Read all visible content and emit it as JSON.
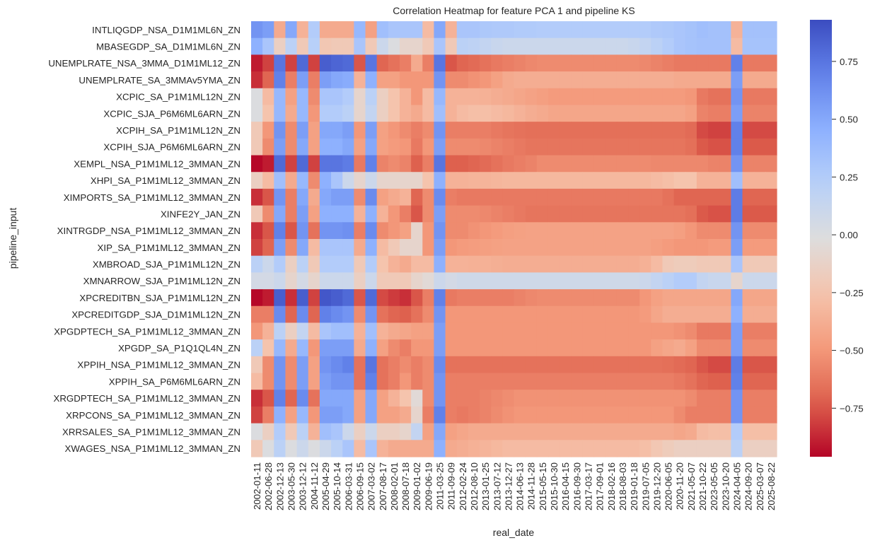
{
  "chart_data": {
    "type": "heatmap",
    "title": "Correlation Heatmap for feature PCA 1 and pipeline KS",
    "xlabel": "real_date",
    "ylabel": "pipeline_input",
    "colormap": "coolwarm",
    "vmin": -0.96,
    "vmax": 0.93,
    "colorbar_ticks": [
      0.75,
      0.5,
      0.25,
      0.0,
      -0.25,
      -0.5,
      -0.75
    ],
    "colorbar_tick_labels": [
      "0.75",
      "0.50",
      "0.25",
      "0.00",
      "−0.25",
      "−0.50",
      "−0.75"
    ],
    "x": [
      "2002-01-11",
      "2002-06-28",
      "2002-12-13",
      "2003-05-30",
      "2003-12-12",
      "2004-11-12",
      "2005-04-29",
      "2005-10-14",
      "2006-03-31",
      "2006-09-15",
      "2007-03-02",
      "2007-08-17",
      "2008-02-01",
      "2008-07-18",
      "2009-01-02",
      "2009-06-19",
      "2011-03-25",
      "2011-09-09",
      "2012-02-24",
      "2012-08-10",
      "2013-01-25",
      "2013-07-12",
      "2013-12-27",
      "2014-06-13",
      "2014-11-28",
      "2015-05-15",
      "2015-10-30",
      "2016-04-15",
      "2016-09-30",
      "2017-03-17",
      "2017-09-01",
      "2018-02-16",
      "2018-08-03",
      "2019-01-18",
      "2019-07-05",
      "2019-12-20",
      "2020-06-05",
      "2020-11-20",
      "2021-05-07",
      "2021-10-22",
      "2023-05-05",
      "2023-10-20",
      "2024-04-05",
      "2024-09-20",
      "2025-03-07",
      "2025-08-22"
    ],
    "y": [
      "INTLIQGDP_NSA_D1M1ML6N_ZN",
      "MBASEGDP_SA_D1M1ML6N_ZN",
      "UNEMPLRATE_NSA_3MMA_D1M1ML12_ZN",
      "UNEMPLRATE_SA_3MMAv5YMA_ZN",
      "XCPIC_SA_P1M1ML12N_ZN",
      "XCPIC_SJA_P6M6ML6ARN_ZN",
      "XCPIH_SA_P1M1ML12N_ZN",
      "XCPIH_SJA_P6M6ML6ARN_ZN",
      "XEMPL_NSA_P1M1ML12_3MMAN_ZN",
      "XHPI_SA_P1M1ML12_3MMAN_ZN",
      "XIMPORTS_SA_P1M1ML12_3MMAN_ZN",
      "XINFE2Y_JAN_ZN",
      "XINTRGDP_NSA_P1M1ML12_3MMAN_ZN",
      "XIP_SA_P1M1ML12_3MMAN_ZN",
      "XMBROAD_SJA_P1M1ML12N_ZN",
      "XMNARROW_SJA_P1M1ML12N_ZN",
      "XPCREDITBN_SJA_P1M1ML12N_ZN",
      "XPCREDITGDP_SJA_D1M1ML12N_ZN",
      "XPGDPTECH_SA_P1M1ML12_3MMAN_ZN",
      "XPGDP_SA_P1Q1QL4N_ZN",
      "XPPIH_NSA_P1M1ML12_3MMAN_ZN",
      "XPPIH_SA_P6M6ML6ARN_ZN",
      "XRGDPTECH_SA_P1M1ML12_3MMAN_ZN",
      "XRPCONS_SA_P1M1ML12_3MMAN_ZN",
      "XRRSALES_SA_P1M1ML12_3MMAN_ZN",
      "XWAGES_NSA_P1M1ML12_3MMAN_ZN"
    ],
    "values": [
      [
        0.6,
        0.55,
        -0.4,
        0.5,
        -0.35,
        0.25,
        -0.4,
        -0.4,
        -0.4,
        0.4,
        -0.45,
        0.35,
        0.3,
        0.3,
        0.3,
        -0.3,
        0.5,
        -0.35,
        0.3,
        0.3,
        0.28,
        0.27,
        0.27,
        0.26,
        0.26,
        0.25,
        0.25,
        0.25,
        0.25,
        0.25,
        0.25,
        0.25,
        0.25,
        0.25,
        0.25,
        0.27,
        0.28,
        0.3,
        0.32,
        0.35,
        0.33,
        0.33,
        -0.35,
        0.33,
        0.33,
        0.33
      ],
      [
        0.45,
        0.3,
        -0.15,
        0.2,
        -0.2,
        0.22,
        -0.22,
        -0.2,
        -0.2,
        0.3,
        -0.2,
        0.1,
        0.0,
        -0.1,
        -0.1,
        -0.2,
        0.3,
        -0.2,
        0.2,
        0.18,
        0.15,
        0.12,
        0.1,
        0.1,
        0.1,
        0.1,
        0.1,
        0.1,
        0.1,
        0.1,
        0.1,
        0.1,
        0.1,
        0.12,
        0.15,
        0.2,
        0.25,
        0.3,
        0.32,
        0.33,
        0.33,
        0.33,
        -0.3,
        0.32,
        0.32,
        0.32
      ],
      [
        -0.9,
        -0.8,
        0.75,
        -0.8,
        0.8,
        -0.8,
        0.85,
        0.82,
        0.8,
        -0.75,
        0.75,
        -0.7,
        -0.65,
        -0.6,
        -0.4,
        -0.6,
        0.75,
        -0.75,
        -0.7,
        -0.68,
        -0.65,
        -0.62,
        -0.6,
        -0.58,
        -0.56,
        -0.55,
        -0.55,
        -0.55,
        -0.55,
        -0.55,
        -0.55,
        -0.55,
        -0.55,
        -0.55,
        -0.56,
        -0.58,
        -0.6,
        -0.62,
        -0.62,
        -0.62,
        -0.62,
        -0.62,
        0.7,
        -0.62,
        -0.62,
        -0.62
      ],
      [
        -0.85,
        -0.7,
        0.7,
        -0.6,
        0.55,
        -0.6,
        0.55,
        0.5,
        0.48,
        -0.35,
        0.45,
        -0.45,
        -0.45,
        -0.5,
        -0.5,
        -0.5,
        0.6,
        -0.55,
        -0.55,
        -0.52,
        -0.5,
        -0.45,
        -0.4,
        -0.38,
        -0.38,
        -0.38,
        -0.38,
        -0.38,
        -0.38,
        -0.38,
        -0.38,
        -0.38,
        -0.38,
        -0.38,
        -0.38,
        -0.38,
        -0.38,
        -0.4,
        -0.4,
        -0.4,
        -0.4,
        -0.4,
        0.55,
        -0.4,
        -0.4,
        -0.4
      ],
      [
        0.0,
        -0.3,
        0.4,
        -0.45,
        0.4,
        -0.55,
        0.3,
        0.3,
        0.25,
        -0.1,
        0.2,
        -0.15,
        -0.25,
        -0.35,
        -0.5,
        -0.3,
        0.4,
        -0.35,
        -0.35,
        -0.35,
        -0.36,
        -0.38,
        -0.4,
        -0.42,
        -0.44,
        -0.46,
        -0.48,
        -0.48,
        -0.48,
        -0.48,
        -0.48,
        -0.48,
        -0.48,
        -0.48,
        -0.48,
        -0.48,
        -0.48,
        -0.48,
        -0.5,
        -0.62,
        -0.65,
        -0.65,
        0.6,
        -0.62,
        -0.62,
        -0.62
      ],
      [
        0.0,
        -0.25,
        0.4,
        -0.4,
        0.4,
        -0.5,
        0.25,
        0.25,
        0.2,
        -0.1,
        0.15,
        -0.15,
        -0.25,
        -0.35,
        -0.4,
        -0.3,
        0.35,
        -0.35,
        -0.3,
        -0.28,
        -0.28,
        -0.3,
        -0.32,
        -0.35,
        -0.38,
        -0.4,
        -0.42,
        -0.42,
        -0.42,
        -0.42,
        -0.42,
        -0.42,
        -0.42,
        -0.42,
        -0.42,
        -0.42,
        -0.42,
        -0.42,
        -0.45,
        -0.58,
        -0.6,
        -0.6,
        0.55,
        -0.58,
        -0.58,
        -0.58
      ],
      [
        -0.2,
        -0.5,
        0.6,
        -0.55,
        0.55,
        -0.45,
        0.5,
        0.5,
        0.55,
        -0.5,
        0.55,
        -0.45,
        -0.5,
        -0.55,
        -0.6,
        -0.55,
        0.6,
        -0.6,
        -0.6,
        -0.6,
        -0.6,
        -0.62,
        -0.64,
        -0.65,
        -0.66,
        -0.66,
        -0.66,
        -0.66,
        -0.66,
        -0.66,
        -0.66,
        -0.66,
        -0.66,
        -0.66,
        -0.66,
        -0.66,
        -0.66,
        -0.66,
        -0.68,
        -0.78,
        -0.8,
        -0.8,
        0.7,
        -0.78,
        -0.78,
        -0.78
      ],
      [
        -0.2,
        -0.55,
        0.55,
        -0.55,
        0.5,
        -0.45,
        0.45,
        0.45,
        0.5,
        -0.45,
        0.5,
        -0.45,
        -0.48,
        -0.5,
        -0.62,
        -0.5,
        0.55,
        -0.55,
        -0.55,
        -0.55,
        -0.56,
        -0.58,
        -0.6,
        -0.62,
        -0.64,
        -0.64,
        -0.64,
        -0.64,
        -0.64,
        -0.64,
        -0.64,
        -0.64,
        -0.64,
        -0.64,
        -0.64,
        -0.64,
        -0.64,
        -0.64,
        -0.66,
        -0.74,
        -0.76,
        -0.76,
        0.7,
        -0.74,
        -0.74,
        -0.74
      ],
      [
        -0.95,
        -0.9,
        0.8,
        -0.8,
        0.8,
        -0.8,
        0.75,
        0.75,
        0.72,
        -0.62,
        0.7,
        -0.58,
        -0.55,
        -0.58,
        -0.72,
        -0.6,
        0.75,
        -0.72,
        -0.72,
        -0.7,
        -0.68,
        -0.65,
        -0.62,
        -0.6,
        -0.58,
        -0.55,
        -0.55,
        -0.55,
        -0.55,
        -0.55,
        -0.55,
        -0.55,
        -0.55,
        -0.55,
        -0.55,
        -0.56,
        -0.56,
        -0.56,
        -0.56,
        -0.56,
        -0.58,
        -0.58,
        0.6,
        -0.58,
        -0.58,
        -0.58
      ],
      [
        -0.15,
        -0.3,
        0.35,
        -0.4,
        0.4,
        -0.55,
        0.45,
        0.3,
        0.1,
        -0.1,
        0.1,
        -0.1,
        -0.1,
        -0.1,
        -0.1,
        -0.25,
        0.45,
        -0.35,
        -0.35,
        -0.34,
        -0.34,
        -0.33,
        -0.32,
        -0.32,
        -0.32,
        -0.32,
        -0.32,
        -0.32,
        -0.32,
        -0.32,
        -0.32,
        -0.32,
        -0.32,
        -0.32,
        -0.32,
        -0.3,
        -0.28,
        -0.25,
        -0.25,
        -0.35,
        -0.35,
        -0.35,
        0.35,
        -0.35,
        -0.35,
        -0.35
      ],
      [
        -0.85,
        -0.75,
        0.6,
        -0.6,
        0.5,
        -0.4,
        0.5,
        0.55,
        0.55,
        -0.55,
        0.65,
        -0.45,
        -0.4,
        -0.35,
        -0.7,
        -0.55,
        0.65,
        -0.6,
        -0.62,
        -0.62,
        -0.62,
        -0.62,
        -0.62,
        -0.62,
        -0.62,
        -0.62,
        -0.62,
        -0.62,
        -0.62,
        -0.62,
        -0.62,
        -0.62,
        -0.62,
        -0.62,
        -0.62,
        -0.62,
        -0.65,
        -0.7,
        -0.7,
        -0.7,
        -0.7,
        -0.7,
        0.72,
        -0.7,
        -0.7,
        -0.7
      ],
      [
        -0.2,
        -0.55,
        0.5,
        -0.6,
        0.55,
        -0.45,
        0.45,
        0.45,
        0.45,
        -0.35,
        0.45,
        -0.35,
        -0.5,
        -0.6,
        -0.75,
        -0.55,
        0.55,
        -0.55,
        -0.55,
        -0.55,
        -0.56,
        -0.58,
        -0.6,
        -0.62,
        -0.64,
        -0.64,
        -0.64,
        -0.64,
        -0.64,
        -0.64,
        -0.64,
        -0.64,
        -0.64,
        -0.64,
        -0.64,
        -0.64,
        -0.64,
        -0.64,
        -0.66,
        -0.74,
        -0.76,
        -0.76,
        0.72,
        -0.74,
        -0.74,
        -0.74
      ],
      [
        -0.85,
        -0.75,
        0.7,
        -0.75,
        0.6,
        -0.65,
        0.6,
        0.6,
        0.62,
        -0.6,
        0.65,
        -0.55,
        -0.5,
        -0.45,
        -0.1,
        -0.5,
        0.6,
        -0.55,
        -0.55,
        -0.52,
        -0.5,
        -0.48,
        -0.46,
        -0.45,
        -0.44,
        -0.44,
        -0.44,
        -0.44,
        -0.44,
        -0.44,
        -0.44,
        -0.44,
        -0.44,
        -0.44,
        -0.44,
        -0.44,
        -0.44,
        -0.46,
        -0.5,
        -0.55,
        -0.55,
        -0.55,
        0.6,
        -0.55,
        -0.55,
        -0.55
      ],
      [
        -0.8,
        -0.7,
        0.55,
        -0.55,
        0.5,
        -0.3,
        0.3,
        0.3,
        0.3,
        -0.4,
        0.45,
        -0.3,
        -0.2,
        -0.1,
        -0.1,
        -0.5,
        0.55,
        -0.5,
        -0.48,
        -0.47,
        -0.46,
        -0.45,
        -0.44,
        -0.44,
        -0.44,
        -0.44,
        -0.44,
        -0.44,
        -0.44,
        -0.44,
        -0.44,
        -0.44,
        -0.44,
        -0.44,
        -0.44,
        -0.46,
        -0.48,
        -0.5,
        -0.5,
        -0.5,
        -0.48,
        -0.48,
        0.55,
        -0.48,
        -0.48,
        -0.48
      ],
      [
        0.2,
        0.1,
        0.25,
        -0.15,
        0.2,
        -0.2,
        0.25,
        0.25,
        0.25,
        -0.2,
        0.25,
        -0.25,
        -0.35,
        -0.4,
        -0.3,
        -0.3,
        0.45,
        -0.35,
        -0.35,
        -0.36,
        -0.36,
        -0.37,
        -0.38,
        -0.38,
        -0.38,
        -0.38,
        -0.38,
        -0.38,
        -0.38,
        -0.38,
        -0.38,
        -0.38,
        -0.38,
        -0.38,
        -0.36,
        -0.3,
        -0.2,
        -0.18,
        -0.18,
        -0.2,
        -0.2,
        -0.2,
        0.3,
        -0.2,
        -0.2,
        -0.2
      ],
      [
        0.05,
        0.05,
        0.1,
        -0.1,
        0.05,
        -0.1,
        0.1,
        0.1,
        0.1,
        -0.15,
        0.1,
        -0.2,
        -0.2,
        -0.2,
        -0.1,
        -0.05,
        0.1,
        0.05,
        0.08,
        0.08,
        0.08,
        0.08,
        0.08,
        0.08,
        0.08,
        0.08,
        0.08,
        0.08,
        0.08,
        0.08,
        0.08,
        0.08,
        0.08,
        0.08,
        0.1,
        0.15,
        0.2,
        0.25,
        0.25,
        0.15,
        0.12,
        0.12,
        -0.1,
        0.1,
        0.1,
        0.1
      ],
      [
        -0.95,
        -0.9,
        0.85,
        -0.85,
        0.85,
        -0.8,
        0.88,
        0.85,
        0.8,
        -0.75,
        0.8,
        -0.78,
        -0.82,
        -0.85,
        -0.75,
        -0.6,
        0.7,
        -0.62,
        -0.6,
        -0.6,
        -0.6,
        -0.6,
        -0.6,
        -0.58,
        -0.56,
        -0.55,
        -0.55,
        -0.55,
        -0.55,
        -0.55,
        -0.55,
        -0.55,
        -0.55,
        -0.55,
        -0.5,
        -0.45,
        -0.42,
        -0.42,
        -0.42,
        -0.42,
        -0.42,
        -0.42,
        0.5,
        -0.42,
        -0.42,
        -0.42
      ],
      [
        -0.6,
        -0.6,
        0.65,
        -0.7,
        0.65,
        -0.7,
        0.7,
        0.65,
        0.6,
        -0.55,
        0.6,
        -0.65,
        -0.7,
        -0.72,
        -0.65,
        -0.55,
        0.6,
        -0.5,
        -0.5,
        -0.5,
        -0.5,
        -0.5,
        -0.5,
        -0.5,
        -0.5,
        -0.5,
        -0.5,
        -0.5,
        -0.5,
        -0.5,
        -0.5,
        -0.5,
        -0.5,
        -0.5,
        -0.48,
        -0.42,
        -0.38,
        -0.38,
        -0.38,
        -0.38,
        -0.38,
        -0.38,
        0.45,
        -0.38,
        -0.38,
        -0.38
      ],
      [
        -0.5,
        -0.35,
        0.2,
        -0.15,
        0.15,
        -0.3,
        0.3,
        0.35,
        0.35,
        -0.35,
        0.35,
        -0.35,
        -0.4,
        -0.42,
        -0.45,
        -0.45,
        0.55,
        -0.5,
        -0.5,
        -0.5,
        -0.5,
        -0.5,
        -0.5,
        -0.5,
        -0.5,
        -0.5,
        -0.5,
        -0.5,
        -0.5,
        -0.5,
        -0.5,
        -0.5,
        -0.5,
        -0.5,
        -0.5,
        -0.5,
        -0.5,
        -0.52,
        -0.55,
        -0.62,
        -0.62,
        -0.62,
        0.55,
        -0.6,
        -0.6,
        -0.6
      ],
      [
        0.2,
        -0.25,
        0.4,
        -0.4,
        0.4,
        -0.5,
        0.55,
        0.55,
        0.55,
        -0.4,
        0.45,
        -0.45,
        -0.55,
        -0.6,
        -0.5,
        -0.5,
        0.55,
        -0.5,
        -0.5,
        -0.5,
        -0.5,
        -0.5,
        -0.5,
        -0.5,
        -0.5,
        -0.5,
        -0.5,
        -0.5,
        -0.5,
        -0.5,
        -0.5,
        -0.5,
        -0.5,
        -0.5,
        -0.5,
        -0.45,
        -0.42,
        -0.4,
        -0.45,
        -0.55,
        -0.55,
        -0.55,
        0.55,
        -0.55,
        -0.55,
        -0.55
      ],
      [
        -0.2,
        -0.55,
        0.6,
        -0.55,
        0.55,
        -0.45,
        0.6,
        0.65,
        0.7,
        -0.65,
        0.75,
        -0.65,
        -0.6,
        -0.55,
        -0.6,
        -0.55,
        0.65,
        -0.65,
        -0.65,
        -0.65,
        -0.65,
        -0.65,
        -0.65,
        -0.65,
        -0.65,
        -0.65,
        -0.65,
        -0.65,
        -0.65,
        -0.65,
        -0.65,
        -0.65,
        -0.65,
        -0.65,
        -0.65,
        -0.65,
        -0.66,
        -0.68,
        -0.7,
        -0.75,
        -0.78,
        -0.78,
        0.72,
        -0.75,
        -0.75,
        -0.75
      ],
      [
        -0.3,
        -0.55,
        0.6,
        -0.55,
        0.55,
        -0.45,
        0.55,
        0.6,
        0.6,
        -0.65,
        0.7,
        -0.65,
        -0.6,
        -0.5,
        -0.6,
        -0.55,
        0.6,
        -0.6,
        -0.6,
        -0.6,
        -0.6,
        -0.6,
        -0.6,
        -0.6,
        -0.6,
        -0.6,
        -0.6,
        -0.6,
        -0.6,
        -0.6,
        -0.6,
        -0.6,
        -0.6,
        -0.6,
        -0.6,
        -0.6,
        -0.6,
        -0.62,
        -0.65,
        -0.7,
        -0.72,
        -0.72,
        0.7,
        -0.7,
        -0.7,
        -0.7
      ],
      [
        -0.85,
        -0.75,
        0.7,
        -0.7,
        0.65,
        -0.65,
        0.5,
        0.5,
        0.5,
        -0.45,
        0.5,
        -0.45,
        -0.35,
        -0.25,
        -0.05,
        -0.55,
        0.6,
        -0.6,
        -0.6,
        -0.6,
        -0.58,
        -0.56,
        -0.54,
        -0.52,
        -0.52,
        -0.52,
        -0.52,
        -0.52,
        -0.52,
        -0.52,
        -0.52,
        -0.52,
        -0.52,
        -0.52,
        -0.52,
        -0.52,
        -0.52,
        -0.52,
        -0.55,
        -0.6,
        -0.6,
        -0.6,
        0.6,
        -0.6,
        -0.6,
        -0.6
      ],
      [
        -0.8,
        -0.6,
        0.45,
        -0.45,
        0.4,
        -0.5,
        0.55,
        0.55,
        0.5,
        -0.45,
        0.5,
        -0.45,
        -0.45,
        -0.4,
        -0.1,
        -0.6,
        0.7,
        -0.6,
        -0.62,
        -0.6,
        -0.58,
        -0.55,
        -0.52,
        -0.5,
        -0.5,
        -0.5,
        -0.5,
        -0.5,
        -0.5,
        -0.5,
        -0.5,
        -0.5,
        -0.5,
        -0.5,
        -0.5,
        -0.5,
        -0.5,
        -0.55,
        -0.6,
        -0.6,
        -0.6,
        -0.6,
        0.6,
        -0.6,
        -0.6,
        -0.6
      ],
      [
        0.0,
        -0.15,
        0.25,
        -0.2,
        0.2,
        -0.35,
        0.35,
        0.3,
        0.1,
        -0.15,
        0.1,
        -0.15,
        -0.15,
        -0.1,
        0.15,
        -0.45,
        0.5,
        -0.45,
        -0.42,
        -0.4,
        -0.4,
        -0.4,
        -0.4,
        -0.4,
        -0.4,
        -0.4,
        -0.4,
        -0.4,
        -0.4,
        -0.4,
        -0.4,
        -0.4,
        -0.4,
        -0.4,
        -0.4,
        -0.4,
        -0.4,
        -0.42,
        -0.4,
        -0.3,
        -0.28,
        -0.28,
        0.25,
        -0.28,
        -0.28,
        -0.28
      ],
      [
        -0.2,
        0.0,
        0.2,
        0.0,
        0.1,
        0.0,
        0.1,
        0.2,
        0.3,
        -0.3,
        0.3,
        -0.35,
        -0.4,
        -0.4,
        -0.4,
        -0.4,
        0.45,
        -0.4,
        -0.38,
        -0.36,
        -0.34,
        -0.32,
        -0.3,
        -0.3,
        -0.3,
        -0.3,
        -0.3,
        -0.3,
        -0.3,
        -0.3,
        -0.3,
        -0.3,
        -0.3,
        -0.3,
        -0.28,
        -0.22,
        -0.18,
        -0.15,
        -0.15,
        -0.15,
        -0.15,
        -0.15,
        0.2,
        -0.15,
        -0.15,
        -0.15
      ]
    ]
  }
}
